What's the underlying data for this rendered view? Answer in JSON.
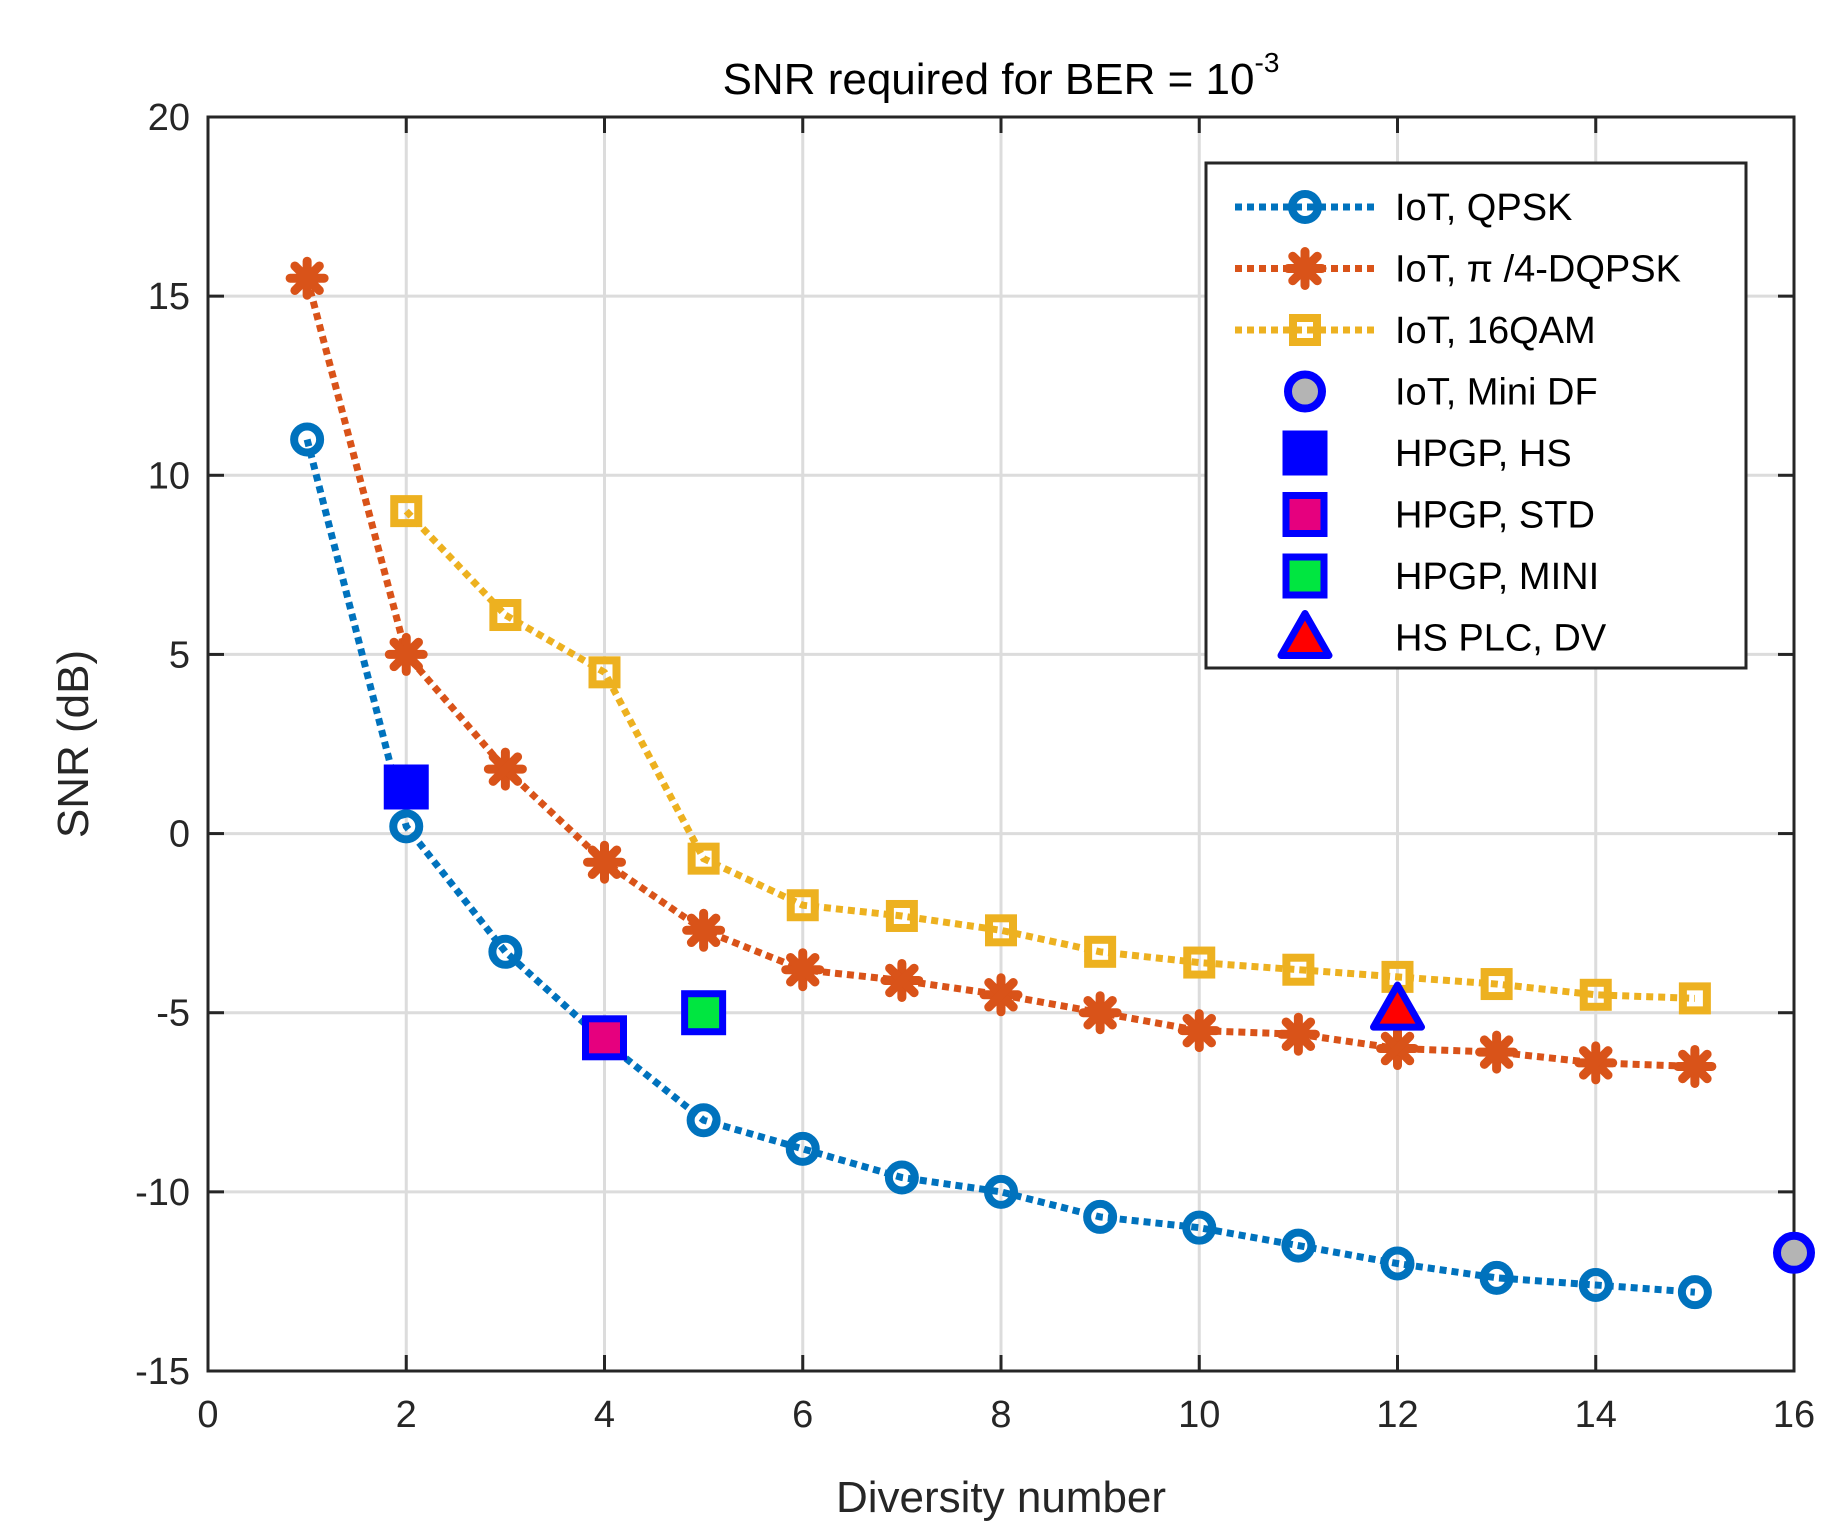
{
  "chart_data": {
    "type": "line",
    "title": "SNR required for BER = 10",
    "title_exponent": "-3",
    "xlabel": "Diversity number",
    "ylabel": "SNR (dB)",
    "xlim": [
      0,
      16
    ],
    "ylim": [
      -15,
      20
    ],
    "grid": true,
    "legend_position": "top-right",
    "xticks": [
      0,
      2,
      4,
      6,
      8,
      10,
      12,
      14,
      16
    ],
    "yticks": [
      -15,
      -10,
      -5,
      0,
      5,
      10,
      15,
      20
    ],
    "series": [
      {
        "name": "IoT, QPSK",
        "color": "#0072BD",
        "line": "dotted",
        "marker": "circle",
        "x": [
          1,
          2,
          3,
          4,
          5,
          6,
          7,
          8,
          9,
          10,
          11,
          12,
          13,
          14,
          15
        ],
        "y": [
          11,
          0.2,
          -3.3,
          -5.8,
          -8,
          -8.8,
          -9.6,
          -10,
          -10.7,
          -11,
          -11.5,
          -12,
          -12.4,
          -12.6,
          -12.8
        ]
      },
      {
        "name": "IoT, π /4-DQPSK",
        "color": "#D95319",
        "line": "dotted",
        "marker": "asterisk",
        "x": [
          1,
          2,
          3,
          4,
          5,
          6,
          7,
          8,
          9,
          10,
          11,
          12,
          13,
          14,
          15
        ],
        "y": [
          15.5,
          5,
          1.8,
          -0.8,
          -2.7,
          -3.8,
          -4.1,
          -4.5,
          -5,
          -5.5,
          -5.6,
          -6,
          -6.1,
          -6.4,
          -6.5
        ]
      },
      {
        "name": "IoT, 16QAM",
        "color": "#EDB120",
        "line": "dotted",
        "marker": "square",
        "x": [
          2,
          3,
          4,
          5,
          6,
          7,
          8,
          9,
          10,
          11,
          12,
          13,
          14,
          15
        ],
        "y": [
          9,
          6.1,
          4.5,
          -0.7,
          -2,
          -2.3,
          -2.7,
          -3.3,
          -3.6,
          -3.8,
          -4,
          -4.2,
          -4.5,
          -4.6
        ]
      },
      {
        "name": "IoT, Mini DF",
        "color": "#0000FF",
        "fill": "#B4B4B4",
        "line": "none",
        "marker": "big-circle",
        "x": [
          16
        ],
        "y": [
          -11.7
        ]
      },
      {
        "name": "HPGP, HS",
        "color": "#0000FF",
        "fill": "#0000FF",
        "line": "none",
        "marker": "big-square",
        "x": [
          2
        ],
        "y": [
          1.3
        ]
      },
      {
        "name": "HPGP, STD",
        "color": "#0000FF",
        "fill": "#E6007E",
        "line": "none",
        "marker": "big-square",
        "x": [
          4
        ],
        "y": [
          -5.7
        ]
      },
      {
        "name": "HPGP, MINI",
        "color": "#0000FF",
        "fill": "#00E640",
        "line": "none",
        "marker": "big-square",
        "x": [
          5
        ],
        "y": [
          -5
        ]
      },
      {
        "name": "HS PLC, DV",
        "color": "#0000FF",
        "fill": "#FF0000",
        "line": "none",
        "marker": "triangle",
        "x": [
          12
        ],
        "y": [
          -4.9
        ]
      }
    ]
  }
}
